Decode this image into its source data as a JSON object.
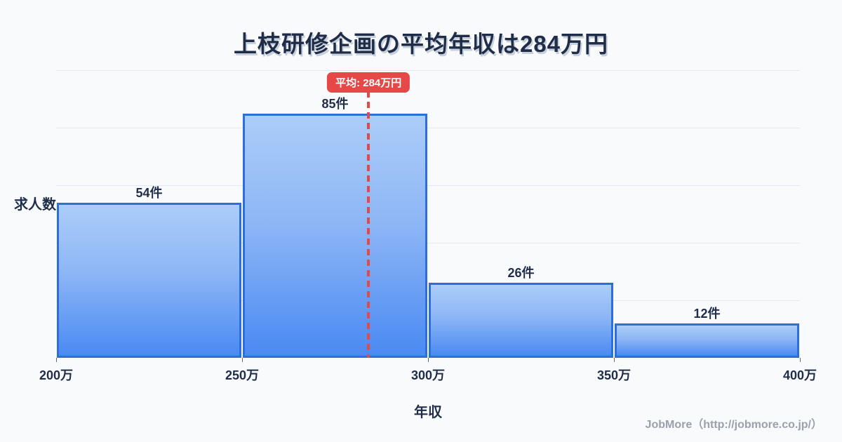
{
  "title": "上枝研修企画の平均年収は284万円",
  "footer": "JobMore（http://jobmore.co.jp/）",
  "chart_data": {
    "type": "bar",
    "title": "上枝研修企画の平均年収は284万円",
    "categories": [
      "200万-250万",
      "250万-300万",
      "300万-350万",
      "350万-400万"
    ],
    "values": [
      54,
      85,
      26,
      12
    ],
    "bar_labels": [
      "54件",
      "85件",
      "26件",
      "12件"
    ],
    "x_tick_labels": [
      "200万",
      "250万",
      "300万",
      "350万",
      "400万"
    ],
    "x_range": [
      200,
      400
    ],
    "ylim": [
      0,
      100
    ],
    "grid_step": 20,
    "grid_on": true,
    "xlabel": "年収",
    "ylabel": "求人数",
    "average_value": 284,
    "average_label": "平均: 284万円",
    "colors": {
      "background": "#f8fafc",
      "bar_gradient_top": "#abcdf8",
      "bar_gradient_bottom": "#4a8af3",
      "bar_border": "#2e6edb",
      "average_accent": "#e64747",
      "gridline": "#e4e8f2",
      "text": "#1f2d49",
      "footer_text": "#9aa1ab"
    }
  }
}
